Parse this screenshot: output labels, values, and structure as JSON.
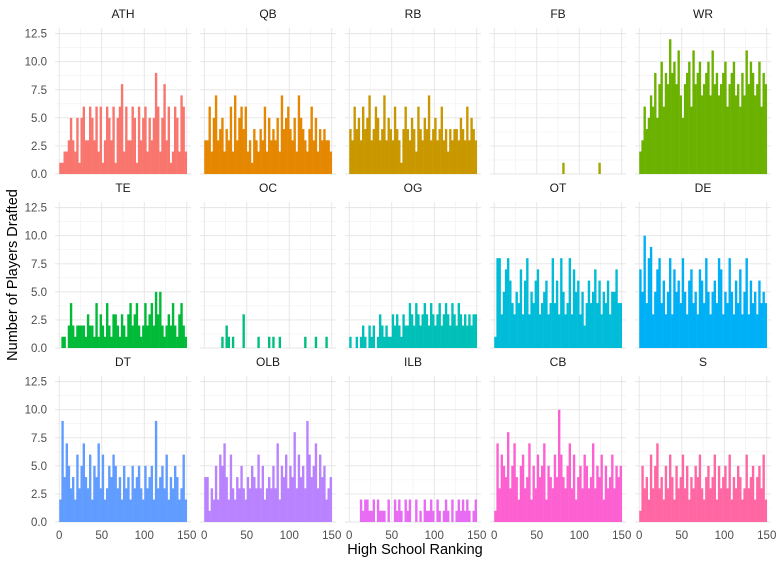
{
  "chart_data": {
    "type": "histogram",
    "xlabel": "High School Ranking",
    "ylabel": "Number of Players Drafted",
    "xlim": [
      -5,
      155
    ],
    "ylim": [
      0,
      13
    ],
    "x_ticks": [
      0,
      50,
      100,
      150
    ],
    "x_tick_labels": [
      "0",
      "50",
      "100",
      "150"
    ],
    "y_ticks": [
      0,
      2.5,
      5,
      7.5,
      10,
      12.5
    ],
    "y_tick_labels": [
      "0.0",
      "2.5",
      "5.0",
      "7.5",
      "10.0",
      "12.5"
    ],
    "bin_width": 2.5,
    "bin_starts": [
      0,
      2.5,
      5,
      7.5,
      10,
      12.5,
      15,
      17.5,
      20,
      22.5,
      25,
      27.5,
      30,
      32.5,
      35,
      37.5,
      40,
      42.5,
      45,
      47.5,
      50,
      52.5,
      55,
      57.5,
      60,
      62.5,
      65,
      67.5,
      70,
      72.5,
      75,
      77.5,
      80,
      82.5,
      85,
      87.5,
      90,
      92.5,
      95,
      97.5,
      100,
      102.5,
      105,
      107.5,
      110,
      112.5,
      115,
      117.5,
      120,
      122.5,
      125,
      127.5,
      130,
      132.5,
      135,
      137.5,
      140,
      142.5,
      145,
      147.5
    ],
    "panels": [
      {
        "name": "ATH",
        "color": "#f8766d",
        "values": [
          1,
          1,
          2,
          2,
          3,
          5,
          3,
          2,
          5,
          1,
          5,
          6,
          3,
          3,
          6,
          5,
          3,
          6,
          2,
          6,
          1,
          3,
          6,
          5,
          3,
          6,
          1,
          5,
          6,
          8,
          2,
          6,
          3,
          3,
          6,
          5,
          1,
          6,
          3,
          5,
          6,
          2,
          5,
          3,
          5,
          9,
          6,
          2,
          5,
          8,
          3,
          6,
          1,
          2,
          6,
          5,
          2,
          7,
          6,
          2
        ]
      },
      {
        "name": "QB",
        "color": "#e58700",
        "values": [
          3,
          3,
          6,
          2,
          5,
          7,
          3,
          4,
          5,
          2,
          4,
          3,
          6,
          2,
          7,
          3,
          5,
          6,
          4,
          6,
          2,
          3,
          1,
          4,
          3,
          2,
          4,
          3,
          6,
          2,
          5,
          3,
          4,
          3,
          5,
          2,
          7,
          4,
          5,
          6,
          4,
          3,
          5,
          2,
          7,
          5,
          4,
          3,
          2,
          4,
          6,
          3,
          5,
          2,
          4,
          3,
          4,
          3,
          3,
          2
        ]
      },
      {
        "name": "RB",
        "color": "#c99800",
        "values": [
          4,
          3,
          6,
          4,
          5,
          3,
          6,
          4,
          5,
          7,
          3,
          4,
          6,
          5,
          3,
          4,
          7,
          3,
          5,
          4,
          3,
          6,
          4,
          3,
          1,
          4,
          6,
          4,
          3,
          5,
          4,
          2,
          6,
          4,
          3,
          5,
          4,
          7,
          3,
          4,
          5,
          3,
          4,
          6,
          3,
          4,
          2,
          4,
          3,
          4,
          4,
          3,
          5,
          4,
          3,
          6,
          3,
          5,
          4,
          3
        ]
      },
      {
        "name": "FB",
        "color": "#a3a500",
        "values": [
          0,
          0,
          0,
          0,
          0,
          0,
          0,
          0,
          0,
          0,
          0,
          0,
          0,
          0,
          0,
          0,
          0,
          0,
          0,
          0,
          0,
          0,
          0,
          0,
          0,
          0,
          0,
          0,
          0,
          0,
          0,
          0,
          1,
          0,
          0,
          0,
          0,
          0,
          0,
          0,
          0,
          0,
          0,
          0,
          0,
          0,
          0,
          0,
          0,
          1,
          0,
          0,
          0,
          0,
          0,
          0,
          0,
          0,
          0,
          0
        ]
      },
      {
        "name": "WR",
        "color": "#6bb100",
        "values": [
          2,
          3,
          6,
          4,
          5,
          7,
          6,
          9,
          5,
          8,
          10,
          6,
          9,
          8,
          12,
          9,
          10,
          8,
          11,
          7,
          5,
          8,
          9,
          10,
          6,
          11,
          8,
          9,
          10,
          7,
          8,
          9,
          10,
          7,
          11,
          8,
          9,
          7,
          8,
          9,
          10,
          6,
          8,
          9,
          10,
          7,
          8,
          6,
          9,
          7,
          11,
          8,
          10,
          9,
          7,
          8,
          10,
          6,
          9,
          8
        ]
      },
      {
        "name": "TE",
        "color": "#00ba38",
        "values": [
          0,
          1,
          1,
          0,
          2,
          4,
          2,
          1,
          2,
          2,
          2,
          2,
          1,
          3,
          2,
          2,
          1,
          4,
          1,
          3,
          2,
          1,
          4,
          2,
          1,
          3,
          3,
          2,
          1,
          3,
          2,
          1,
          3,
          4,
          2,
          3,
          4,
          2,
          1,
          2,
          4,
          2,
          3,
          4,
          2,
          5,
          3,
          5,
          2,
          1,
          2,
          3,
          2,
          4,
          2,
          1,
          3,
          4,
          2,
          1
        ]
      },
      {
        "name": "OC",
        "color": "#00bf7d",
        "values": [
          0,
          0,
          0,
          0,
          0,
          0,
          0,
          0,
          1,
          0,
          2,
          1,
          0,
          1,
          0,
          0,
          0,
          0,
          3,
          0,
          0,
          0,
          0,
          0,
          0,
          1,
          0,
          0,
          0,
          0,
          1,
          0,
          1,
          0,
          0,
          1,
          0,
          0,
          0,
          0,
          0,
          0,
          0,
          0,
          0,
          0,
          0,
          1,
          0,
          0,
          0,
          0,
          1,
          0,
          0,
          0,
          0,
          1,
          0,
          0
        ]
      },
      {
        "name": "OG",
        "color": "#00c0b8",
        "values": [
          1,
          0,
          0,
          1,
          0,
          1,
          2,
          1,
          0,
          2,
          1,
          2,
          0,
          1,
          3,
          2,
          1,
          2,
          1,
          1,
          3,
          2,
          3,
          2,
          1,
          3,
          2,
          2,
          4,
          3,
          2,
          4,
          3,
          2,
          3,
          4,
          3,
          2,
          4,
          3,
          2,
          3,
          4,
          2,
          3,
          4,
          3,
          2,
          4,
          3,
          2,
          4,
          3,
          2,
          3,
          2,
          3,
          2,
          3,
          3
        ]
      },
      {
        "name": "OT",
        "color": "#00bcd8",
        "values": [
          1,
          8,
          8,
          3,
          5,
          7,
          8,
          6,
          4,
          3,
          5,
          4,
          7,
          3,
          6,
          8,
          3,
          5,
          4,
          6,
          7,
          3,
          4,
          5,
          6,
          3,
          4,
          8,
          4,
          6,
          3,
          8,
          5,
          3,
          4,
          8,
          3,
          7,
          5,
          6,
          3,
          5,
          2,
          4,
          6,
          4,
          5,
          7,
          4,
          6,
          3,
          5,
          4,
          6,
          3,
          5,
          5,
          7,
          4,
          4
        ]
      },
      {
        "name": "DE",
        "color": "#00b0f6",
        "values": [
          7,
          5,
          10,
          4,
          8,
          9,
          3,
          5,
          7,
          8,
          4,
          6,
          3,
          5,
          8,
          3,
          7,
          5,
          6,
          4,
          8,
          5,
          3,
          6,
          7,
          4,
          5,
          3,
          7,
          6,
          4,
          8,
          5,
          3,
          5,
          6,
          4,
          8,
          7,
          3,
          5,
          4,
          8,
          5,
          3,
          6,
          4,
          7,
          3,
          5,
          8,
          3,
          6,
          4,
          5,
          3,
          6,
          4,
          5,
          4
        ]
      },
      {
        "name": "DT",
        "color": "#619cff",
        "values": [
          2,
          9,
          4,
          7,
          5,
          3,
          4,
          2,
          6,
          3,
          5,
          7,
          4,
          3,
          6,
          2,
          5,
          4,
          7,
          3,
          6,
          2,
          3,
          5,
          4,
          6,
          5,
          3,
          4,
          2,
          5,
          3,
          4,
          2,
          5,
          3,
          4,
          5,
          3,
          2,
          5,
          3,
          4,
          5,
          2,
          9,
          3,
          4,
          5,
          3,
          6,
          2,
          4,
          3,
          5,
          4,
          2,
          3,
          6,
          2
        ]
      },
      {
        "name": "OLB",
        "color": "#b983ff",
        "values": [
          4,
          4,
          1,
          3,
          2,
          5,
          2,
          6,
          5,
          7,
          4,
          2,
          6,
          3,
          2,
          4,
          3,
          5,
          3,
          2,
          4,
          3,
          5,
          4,
          3,
          6,
          3,
          5,
          2,
          3,
          4,
          3,
          5,
          3,
          7,
          2,
          5,
          4,
          6,
          3,
          5,
          4,
          8,
          3,
          6,
          4,
          5,
          3,
          9,
          6,
          4,
          5,
          7,
          3,
          6,
          4,
          5,
          2,
          3,
          4
        ]
      },
      {
        "name": "ILB",
        "color": "#e76bf3",
        "values": [
          0,
          0,
          0,
          0,
          0,
          2,
          1,
          2,
          2,
          1,
          1,
          2,
          0,
          2,
          1,
          1,
          1,
          0,
          2,
          0,
          0,
          2,
          1,
          2,
          1,
          0,
          2,
          1,
          2,
          0,
          0,
          2,
          0,
          1,
          0,
          2,
          1,
          1,
          2,
          1,
          0,
          2,
          1,
          0,
          1,
          2,
          1,
          0,
          2,
          0,
          1,
          2,
          1,
          2,
          1,
          2,
          1,
          0,
          1,
          2
        ]
      },
      {
        "name": "CB",
        "color": "#fd61d1",
        "values": [
          1,
          7,
          3,
          6,
          5,
          4,
          8,
          3,
          5,
          7,
          4,
          2,
          5,
          6,
          3,
          4,
          7,
          2,
          5,
          3,
          6,
          4,
          5,
          7,
          2,
          5,
          4,
          3,
          6,
          4,
          10,
          6,
          4,
          3,
          5,
          7,
          3,
          6,
          2,
          4,
          5,
          3,
          6,
          5,
          3,
          4,
          7,
          3,
          5,
          4,
          6,
          2,
          5,
          3,
          4,
          6,
          3,
          5,
          4,
          5
        ]
      },
      {
        "name": "S",
        "color": "#ff67a4",
        "values": [
          1,
          5,
          3,
          4,
          2,
          6,
          3,
          5,
          7,
          3,
          4,
          2,
          5,
          3,
          6,
          4,
          2,
          5,
          3,
          4,
          6,
          3,
          5,
          2,
          4,
          3,
          5,
          4,
          6,
          3,
          2,
          4,
          5,
          3,
          4,
          6,
          2,
          5,
          3,
          4,
          5,
          3,
          6,
          2,
          4,
          3,
          5,
          4,
          2,
          3,
          6,
          3,
          4,
          5,
          2,
          4,
          5,
          3,
          6,
          2
        ]
      }
    ]
  }
}
